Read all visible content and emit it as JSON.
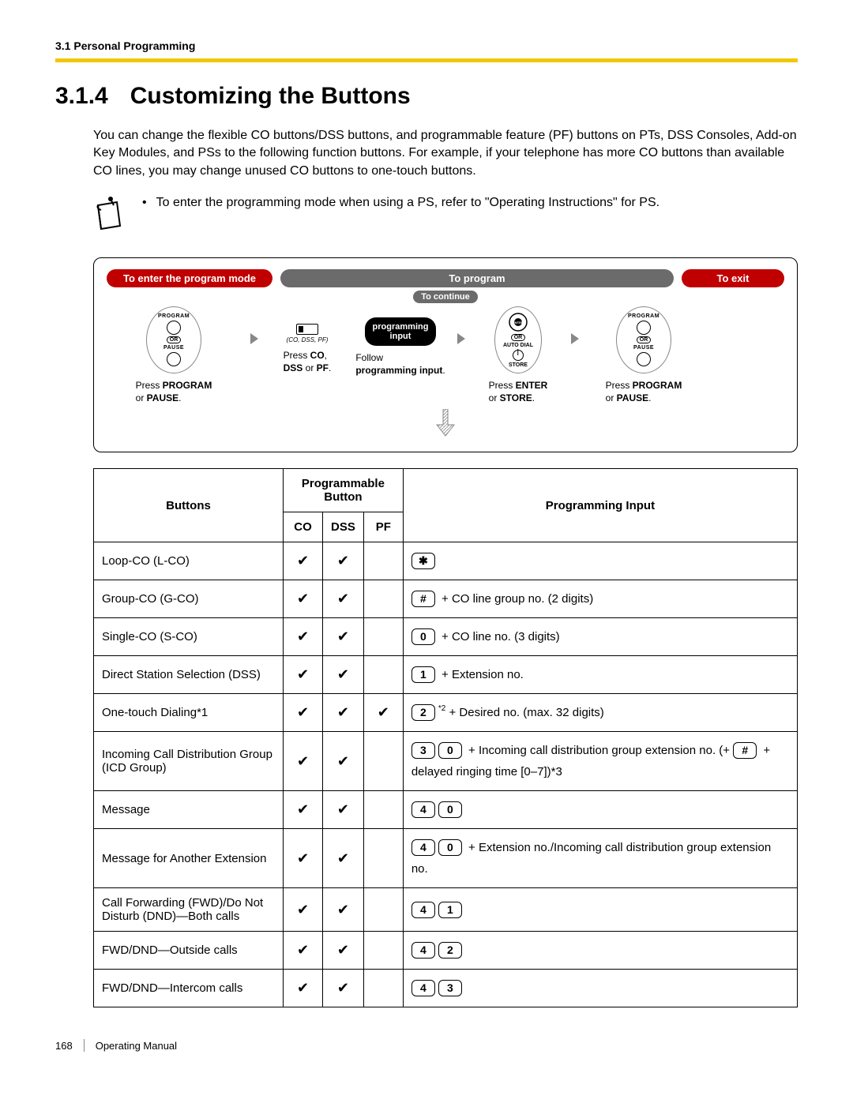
{
  "header": {
    "section": "3.1 Personal Programming"
  },
  "title": {
    "number": "3.1.4",
    "text": "Customizing the Buttons"
  },
  "intro": "You can change the flexible CO buttons/DSS buttons, and programmable feature (PF) buttons on PTs, DSS Consoles, Add-on Key Modules, and PSs to the following function buttons. For example, if your telephone has more CO buttons than available CO lines, you may change unused CO buttons to one-touch buttons.",
  "note": "To enter the programming mode when using a PS, refer to \"Operating Instructions\" for PS.",
  "diagram": {
    "h1": "To enter the program mode",
    "h2": "To program",
    "h3": "To exit",
    "continue": "To continue",
    "prog_label": "PROGRAM",
    "or_label": "OR",
    "pause_label": "PAUSE",
    "co_hint": "(CO, DSS, PF)",
    "black_pill_l1": "programming",
    "black_pill_l2": "input",
    "enter_label": "ENTER",
    "autodial_label": "AUTO DIAL",
    "store_label": "STORE",
    "cap1_a": "Press ",
    "cap1_b": "PROGRAM",
    "cap1_c": " or ",
    "cap1_d": "PAUSE",
    "cap1_e": ".",
    "cap2_a": "Press ",
    "cap2_b": "CO",
    "cap2_c": ", ",
    "cap2_d": "DSS",
    "cap2_e": " or ",
    "cap2_f": "PF",
    "cap2_g": ".",
    "cap3_a": "Follow ",
    "cap3_b": "programming input",
    "cap3_c": ".",
    "cap4_a": "Press ",
    "cap4_b": "ENTER",
    "cap4_c": " or ",
    "cap4_d": "STORE",
    "cap4_e": ".",
    "cap5_a": "Press ",
    "cap5_b": "PROGRAM",
    "cap5_c": " or ",
    "cap5_d": "PAUSE",
    "cap5_e": "."
  },
  "table": {
    "hdr_buttons": "Buttons",
    "hdr_pb_top": "Programmable",
    "hdr_pb_bot": "Button",
    "hdr_co": "CO",
    "hdr_dss": "DSS",
    "hdr_pf": "PF",
    "hdr_pi": "Programming Input",
    "rows": [
      {
        "name": "Loop-CO (L-CO)",
        "co": "✔",
        "dss": "✔",
        "pf": "",
        "keys": [
          "✱"
        ],
        "text": ""
      },
      {
        "name": "Group-CO (G-CO)",
        "co": "✔",
        "dss": "✔",
        "pf": "",
        "keys": [
          "#"
        ],
        "text": " + CO line group no. (2 digits)"
      },
      {
        "name": "Single-CO (S-CO)",
        "co": "✔",
        "dss": "✔",
        "pf": "",
        "keys": [
          "0"
        ],
        "text": " + CO line no. (3 digits)"
      },
      {
        "name": "Direct Station Selection (DSS)",
        "co": "✔",
        "dss": "✔",
        "pf": "",
        "keys": [
          "1"
        ],
        "text": " + Extension no."
      },
      {
        "name": "One-touch Dialing*1",
        "co": "✔",
        "dss": "✔",
        "pf": "✔",
        "keys": [
          "2"
        ],
        "sup": "*2",
        "text": " + Desired no. (max. 32 digits)"
      },
      {
        "name": "Incoming Call Distribution Group (ICD Group)",
        "co": "✔",
        "dss": "✔",
        "pf": "",
        "keys": [
          "3",
          "0"
        ],
        "text_pre": " + Incoming call distribution group extension no. (+ ",
        "mid_key": "#",
        "text_post": " + delayed ringing time [0–7])*3"
      },
      {
        "name": "Message",
        "co": "✔",
        "dss": "✔",
        "pf": "",
        "keys": [
          "4",
          "0"
        ],
        "text": ""
      },
      {
        "name": "Message for Another Extension",
        "co": "✔",
        "dss": "✔",
        "pf": "",
        "keys": [
          "4",
          "0"
        ],
        "text": " + Extension no./Incoming call distribution group extension no."
      },
      {
        "name": "Call Forwarding (FWD)/Do Not Disturb (DND)—Both calls",
        "co": "✔",
        "dss": "✔",
        "pf": "",
        "keys": [
          "4",
          "1"
        ],
        "text": ""
      },
      {
        "name": "FWD/DND—Outside calls",
        "co": "✔",
        "dss": "✔",
        "pf": "",
        "keys": [
          "4",
          "2"
        ],
        "text": ""
      },
      {
        "name": "FWD/DND—Intercom calls",
        "co": "✔",
        "dss": "✔",
        "pf": "",
        "keys": [
          "4",
          "3"
        ],
        "text": ""
      }
    ]
  },
  "footer": {
    "page": "168",
    "title": "Operating Manual"
  }
}
